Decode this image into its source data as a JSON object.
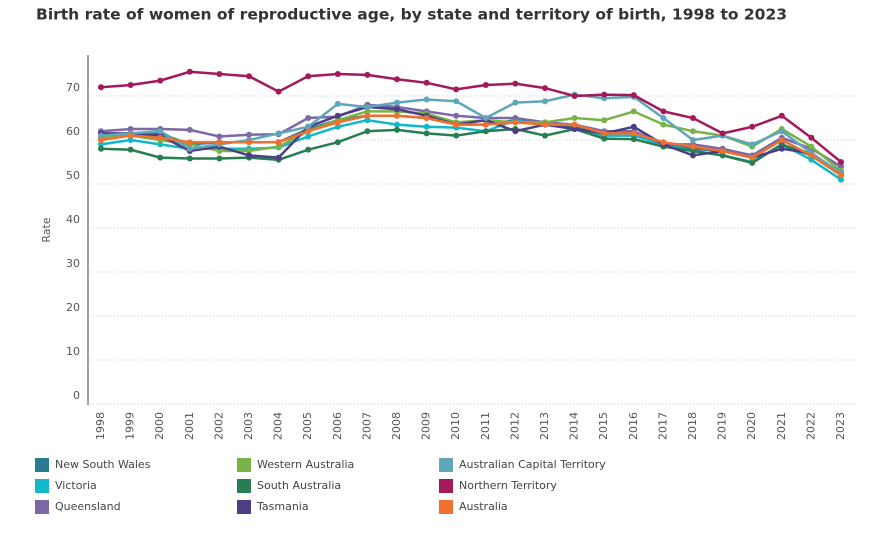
{
  "chart_data": {
    "type": "line",
    "title": "Birth rate of women of reproductive age, by state and territory of birth, 1998 to 2023",
    "y_label": "Rate",
    "categories": [
      "1998",
      "1999",
      "2000",
      "2001",
      "2002",
      "2003",
      "2004",
      "2005",
      "2006",
      "2007",
      "2008",
      "2009",
      "2010",
      "2011",
      "2012",
      "2013",
      "2014",
      "2015",
      "2016",
      "2017",
      "2018",
      "2019",
      "2020",
      "2021",
      "2022",
      "2023"
    ],
    "ylim": [
      0,
      80
    ],
    "yticks": [
      0,
      10,
      20,
      30,
      40,
      50,
      60,
      70
    ],
    "grid": true,
    "series": [
      {
        "name": "New South Wales",
        "color": "#2a7b92",
        "values": [
          60.5,
          61.5,
          61.5,
          59,
          59.5,
          59.5,
          59.5,
          62.5,
          64.5,
          65.5,
          65.5,
          65,
          63.5,
          63.5,
          64.5,
          63.5,
          63,
          61.5,
          61.5,
          59,
          58,
          57.5,
          56,
          60,
          56.5,
          52
        ]
      },
      {
        "name": "Victoria",
        "color": "#12b8c9",
        "values": [
          59,
          60,
          59,
          58,
          58,
          58,
          58.3,
          60.8,
          63,
          64.5,
          63.5,
          63,
          62.8,
          62,
          64.5,
          63.5,
          62.5,
          61,
          61,
          59,
          57.5,
          56.5,
          55,
          59,
          55.5,
          51
        ]
      },
      {
        "name": "Queensland",
        "color": "#7d68a8",
        "values": [
          62,
          62.5,
          62.5,
          62.3,
          60.8,
          61.2,
          61.3,
          65,
          65.3,
          68,
          67.5,
          66.5,
          65.5,
          65,
          65,
          64,
          63.5,
          62,
          62,
          59,
          59,
          58,
          56.5,
          60.5,
          58,
          54
        ]
      },
      {
        "name": "Western Australia",
        "color": "#79b348",
        "values": [
          60.5,
          61,
          60,
          59,
          57.5,
          57.5,
          58.5,
          62,
          64.5,
          66.5,
          66.5,
          66,
          64,
          64.5,
          64,
          64,
          65,
          64.5,
          66.5,
          63.5,
          62,
          61,
          58.5,
          62.5,
          58.5,
          53
        ]
      },
      {
        "name": "South Australia",
        "color": "#277e50",
        "values": [
          58,
          57.8,
          56,
          55.8,
          55.8,
          56,
          55.5,
          57.8,
          59.5,
          62,
          62.3,
          61.5,
          61,
          62,
          62.5,
          61,
          62.5,
          60.3,
          60.2,
          58.5,
          57.5,
          56.5,
          54.8,
          59,
          56.5,
          52
        ]
      },
      {
        "name": "Tasmania",
        "color": "#4c3f87",
        "values": [
          61.5,
          61.5,
          61,
          57.5,
          58.5,
          56.5,
          56,
          63,
          65.5,
          67.5,
          67,
          65.5,
          63.5,
          64.5,
          62,
          63.5,
          62.5,
          61.5,
          63,
          59,
          56.5,
          57.5,
          56,
          58,
          57,
          52.5
        ]
      },
      {
        "name": "Australian Capital Territory",
        "color": "#5ea6ba",
        "values": [
          61,
          61.5,
          62,
          58,
          59,
          60,
          61.5,
          63,
          68.2,
          67.5,
          68.5,
          69.2,
          68.8,
          65,
          68.5,
          68.8,
          70.3,
          69.5,
          69.8,
          65,
          60,
          61,
          59,
          62,
          57,
          52.5
        ]
      },
      {
        "name": "Northern Territory",
        "color": "#a3195b",
        "values": [
          72,
          72.5,
          73.5,
          75.5,
          75,
          74.5,
          71,
          74.5,
          75,
          74.8,
          73.8,
          73,
          71.5,
          72.5,
          72.8,
          71.8,
          70,
          70.3,
          70.2,
          66.5,
          65,
          61.5,
          63,
          65.5,
          60.5,
          55
        ]
      },
      {
        "name": "Australia",
        "color": "#f07030",
        "values": [
          60,
          61,
          60.5,
          59.5,
          59.5,
          59.5,
          59.5,
          62,
          64,
          65.5,
          65.5,
          65,
          63.5,
          63.5,
          64,
          63.5,
          63.5,
          61.5,
          61.5,
          59.5,
          58.5,
          57.5,
          56,
          60,
          56.5,
          52
        ]
      }
    ]
  }
}
